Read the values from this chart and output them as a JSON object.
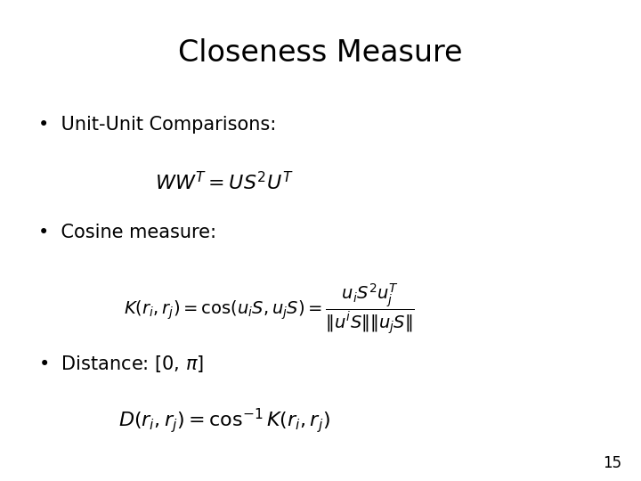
{
  "title": "Closeness Measure",
  "title_fontsize": 24,
  "title_fontweight": "normal",
  "background_color": "#ffffff",
  "text_color": "#000000",
  "bullet1": "Unit-Unit Comparisons:",
  "formula1": "$WW^T = US^2U^T$",
  "bullet2": "Cosine measure:",
  "formula2": "$K(r_i, r_j) = \\cos(u_i S, u_j S) = \\dfrac{u_i S^2 u_j^T}{\\|u^i S\\|\\|u_j S\\|}$",
  "bullet3_text": "Distance: [0, ",
  "bullet3_pi": "$\\pi$",
  "bullet3_end": "]",
  "formula3": "$D(r_i, r_j) = \\cos^{-1} K(r_i, r_j)$",
  "page_number": "15",
  "bullet_fontsize": 15,
  "formula_fontsize": 14,
  "page_fontsize": 12
}
